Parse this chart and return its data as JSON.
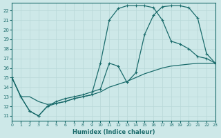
{
  "xlabel": "Humidex (Indice chaleur)",
  "bg_color": "#cde8e8",
  "grid_color": "#b8d8d8",
  "line_color": "#1a6b6b",
  "xlim": [
    0,
    23
  ],
  "ylim": [
    10.5,
    22.8
  ],
  "xticks": [
    0,
    1,
    2,
    3,
    4,
    5,
    6,
    7,
    8,
    9,
    10,
    11,
    12,
    13,
    14,
    15,
    16,
    17,
    18,
    19,
    20,
    21,
    22,
    23
  ],
  "yticks": [
    11,
    12,
    13,
    14,
    15,
    16,
    17,
    18,
    19,
    20,
    21,
    22
  ],
  "line1_x": [
    0,
    1,
    2,
    3,
    4,
    5,
    6,
    7,
    8,
    9,
    10,
    11,
    12,
    13,
    14,
    15,
    16,
    17,
    18,
    19,
    20,
    21,
    22,
    23
  ],
  "line1_y": [
    15.0,
    13.0,
    13.0,
    12.5,
    12.2,
    12.3,
    12.5,
    12.8,
    13.0,
    13.2,
    13.5,
    14.0,
    14.3,
    14.6,
    15.0,
    15.4,
    15.7,
    16.0,
    16.2,
    16.3,
    16.4,
    16.5,
    16.5,
    16.5
  ],
  "line2_x": [
    0,
    1,
    2,
    3,
    4,
    5,
    6,
    7,
    8,
    9,
    10,
    11,
    12,
    13,
    14,
    15,
    16,
    17,
    18,
    19,
    20,
    21,
    22,
    23
  ],
  "line2_y": [
    15.0,
    13.0,
    11.5,
    11.0,
    12.0,
    12.5,
    12.8,
    13.0,
    13.2,
    13.5,
    13.8,
    16.5,
    16.2,
    14.5,
    15.5,
    19.5,
    21.5,
    22.4,
    22.5,
    22.5,
    22.3,
    21.2,
    17.5,
    16.5
  ],
  "line3_x": [
    0,
    1,
    2,
    3,
    4,
    5,
    6,
    7,
    8,
    9,
    10,
    11,
    12,
    13,
    14,
    15,
    16,
    17,
    18,
    19,
    20,
    21,
    22,
    23
  ],
  "line3_y": [
    15.0,
    13.0,
    11.5,
    11.0,
    12.0,
    12.3,
    12.5,
    12.8,
    13.0,
    13.2,
    16.5,
    21.0,
    22.2,
    22.5,
    22.5,
    22.5,
    22.3,
    21.0,
    18.8,
    18.5,
    18.0,
    17.2,
    17.0,
    16.5
  ]
}
